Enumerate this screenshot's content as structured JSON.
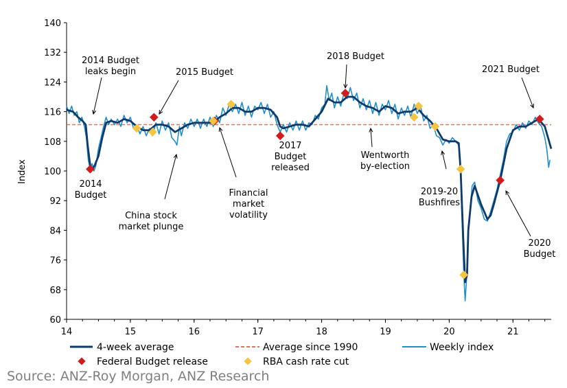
{
  "chart_data": {
    "type": "line",
    "ylabel": "Index",
    "ylim": [
      60,
      140
    ],
    "yticks": [
      "60",
      "68",
      "76",
      "84",
      "92",
      "100",
      "108",
      "116",
      "124",
      "132",
      "140"
    ],
    "xlim": [
      14,
      21.6
    ],
    "xticks": [
      "14",
      "15",
      "16",
      "17",
      "18",
      "19",
      "20",
      "21"
    ],
    "grid": false,
    "legend_position": "bottom",
    "series": [
      {
        "name": "4-week average",
        "color": "#0d3a6b",
        "points": [
          [
            14.0,
            116.5
          ],
          [
            14.1,
            116.0
          ],
          [
            14.18,
            114.5
          ],
          [
            14.25,
            113.5
          ],
          [
            14.3,
            112.5
          ],
          [
            14.33,
            107
          ],
          [
            14.37,
            101.5
          ],
          [
            14.4,
            100.5
          ],
          [
            14.44,
            101.5
          ],
          [
            14.5,
            104
          ],
          [
            14.56,
            109
          ],
          [
            14.62,
            113
          ],
          [
            14.7,
            113.5
          ],
          [
            14.8,
            113
          ],
          [
            14.9,
            114
          ],
          [
            15.0,
            113.5
          ],
          [
            15.1,
            112
          ],
          [
            15.2,
            111
          ],
          [
            15.3,
            111
          ],
          [
            15.4,
            112.5
          ],
          [
            15.5,
            112.5
          ],
          [
            15.6,
            112
          ],
          [
            15.7,
            110.5
          ],
          [
            15.8,
            111.5
          ],
          [
            15.9,
            112.5
          ],
          [
            16.0,
            113
          ],
          [
            16.1,
            113
          ],
          [
            16.2,
            113
          ],
          [
            16.3,
            113
          ],
          [
            16.4,
            114.5
          ],
          [
            16.5,
            115.5
          ],
          [
            16.6,
            117
          ],
          [
            16.7,
            117
          ],
          [
            16.8,
            116
          ],
          [
            16.9,
            116
          ],
          [
            17.0,
            117
          ],
          [
            17.1,
            117
          ],
          [
            17.2,
            116.5
          ],
          [
            17.3,
            114.5
          ],
          [
            17.35,
            112
          ],
          [
            17.4,
            111.5
          ],
          [
            17.5,
            112
          ],
          [
            17.6,
            112.5
          ],
          [
            17.7,
            112.5
          ],
          [
            17.8,
            112
          ],
          [
            17.9,
            114
          ],
          [
            18.0,
            116
          ],
          [
            18.1,
            119.5
          ],
          [
            18.2,
            118.5
          ],
          [
            18.3,
            118.5
          ],
          [
            18.4,
            120
          ],
          [
            18.5,
            120
          ],
          [
            18.6,
            118.5
          ],
          [
            18.7,
            117.5
          ],
          [
            18.8,
            117
          ],
          [
            18.9,
            116
          ],
          [
            19.0,
            117.5
          ],
          [
            19.1,
            117
          ],
          [
            19.2,
            115.5
          ],
          [
            19.3,
            116
          ],
          [
            19.4,
            116
          ],
          [
            19.5,
            117
          ],
          [
            19.6,
            115
          ],
          [
            19.7,
            113.5
          ],
          [
            19.8,
            111.5
          ],
          [
            19.9,
            108.5
          ],
          [
            20.0,
            108
          ],
          [
            20.1,
            108
          ],
          [
            20.15,
            107.5
          ],
          [
            20.18,
            100
          ],
          [
            20.22,
            82
          ],
          [
            20.25,
            70
          ],
          [
            20.28,
            72
          ],
          [
            20.3,
            84
          ],
          [
            20.35,
            93
          ],
          [
            20.4,
            96
          ],
          [
            20.5,
            91
          ],
          [
            20.6,
            87
          ],
          [
            20.65,
            88
          ],
          [
            20.7,
            91
          ],
          [
            20.8,
            97.5
          ],
          [
            20.9,
            106
          ],
          [
            21.0,
            111
          ],
          [
            21.1,
            112
          ],
          [
            21.2,
            112
          ],
          [
            21.3,
            113
          ],
          [
            21.4,
            114
          ],
          [
            21.5,
            112
          ],
          [
            21.6,
            106
          ]
        ]
      },
      {
        "name": "Weekly index",
        "color": "#1f8fc9",
        "points": [
          [
            14.0,
            117.5
          ],
          [
            14.04,
            115.5
          ],
          [
            14.08,
            117.5
          ],
          [
            14.12,
            115
          ],
          [
            14.16,
            116
          ],
          [
            14.2,
            113
          ],
          [
            14.24,
            114.5
          ],
          [
            14.28,
            112
          ],
          [
            14.31,
            109
          ],
          [
            14.34,
            103
          ],
          [
            14.37,
            100.5
          ],
          [
            14.4,
            102
          ],
          [
            14.43,
            100
          ],
          [
            14.46,
            101.5
          ],
          [
            14.5,
            106
          ],
          [
            14.54,
            109
          ],
          [
            14.58,
            112
          ],
          [
            14.62,
            114.5
          ],
          [
            14.66,
            112.5
          ],
          [
            14.7,
            114
          ],
          [
            14.75,
            112.5
          ],
          [
            14.8,
            114
          ],
          [
            14.85,
            112
          ],
          [
            14.9,
            115
          ],
          [
            14.95,
            113
          ],
          [
            15.0,
            114.5
          ],
          [
            15.05,
            111.5
          ],
          [
            15.1,
            112.5
          ],
          [
            15.15,
            110
          ],
          [
            15.2,
            112
          ],
          [
            15.25,
            109.5
          ],
          [
            15.3,
            111.5
          ],
          [
            15.35,
            109.5
          ],
          [
            15.4,
            113
          ],
          [
            15.45,
            110
          ],
          [
            15.5,
            113.5
          ],
          [
            15.55,
            111
          ],
          [
            15.6,
            113
          ],
          [
            15.65,
            109
          ],
          [
            15.7,
            108
          ],
          [
            15.73,
            107
          ],
          [
            15.77,
            112
          ],
          [
            15.8,
            109.5
          ],
          [
            15.85,
            113
          ],
          [
            15.9,
            111.5
          ],
          [
            15.95,
            114
          ],
          [
            16.0,
            112
          ],
          [
            16.05,
            114
          ],
          [
            16.1,
            111.5
          ],
          [
            16.15,
            114
          ],
          [
            16.2,
            112
          ],
          [
            16.25,
            114.5
          ],
          [
            16.3,
            112
          ],
          [
            16.35,
            115
          ],
          [
            16.4,
            113
          ],
          [
            16.45,
            117
          ],
          [
            16.5,
            115
          ],
          [
            16.55,
            118
          ],
          [
            16.6,
            116
          ],
          [
            16.65,
            118
          ],
          [
            16.7,
            115.5
          ],
          [
            16.75,
            118.5
          ],
          [
            16.8,
            115
          ],
          [
            16.85,
            117.5
          ],
          [
            16.9,
            114.5
          ],
          [
            16.95,
            117.5
          ],
          [
            17.0,
            116.5
          ],
          [
            17.05,
            118.5
          ],
          [
            17.1,
            115.5
          ],
          [
            17.15,
            118
          ],
          [
            17.2,
            114.5
          ],
          [
            17.25,
            116
          ],
          [
            17.3,
            112.5
          ],
          [
            17.35,
            110.5
          ],
          [
            17.4,
            112.5
          ],
          [
            17.45,
            110.5
          ],
          [
            17.5,
            113
          ],
          [
            17.55,
            111
          ],
          [
            17.6,
            113.5
          ],
          [
            17.65,
            111
          ],
          [
            17.7,
            113.5
          ],
          [
            17.75,
            111
          ],
          [
            17.8,
            113
          ],
          [
            17.85,
            112.5
          ],
          [
            17.9,
            115
          ],
          [
            17.95,
            114
          ],
          [
            18.0,
            117
          ],
          [
            18.05,
            118
          ],
          [
            18.08,
            123
          ],
          [
            18.12,
            119
          ],
          [
            18.16,
            121
          ],
          [
            18.2,
            117
          ],
          [
            18.25,
            120
          ],
          [
            18.3,
            117.5
          ],
          [
            18.35,
            121
          ],
          [
            18.4,
            119.5
          ],
          [
            18.45,
            122.5
          ],
          [
            18.5,
            119
          ],
          [
            18.55,
            121
          ],
          [
            18.6,
            117
          ],
          [
            18.65,
            119.5
          ],
          [
            18.7,
            116.5
          ],
          [
            18.75,
            119
          ],
          [
            18.8,
            115.5
          ],
          [
            18.85,
            118.5
          ],
          [
            18.9,
            115
          ],
          [
            18.95,
            118
          ],
          [
            19.0,
            116.5
          ],
          [
            19.05,
            119
          ],
          [
            19.1,
            115.5
          ],
          [
            19.15,
            118
          ],
          [
            19.2,
            114
          ],
          [
            19.25,
            117
          ],
          [
            19.3,
            115
          ],
          [
            19.35,
            117.5
          ],
          [
            19.4,
            114.5
          ],
          [
            19.45,
            118
          ],
          [
            19.5,
            115.5
          ],
          [
            19.55,
            117.5
          ],
          [
            19.6,
            113.5
          ],
          [
            19.65,
            115
          ],
          [
            19.7,
            111.5
          ],
          [
            19.75,
            112.5
          ],
          [
            19.8,
            109.5
          ],
          [
            19.85,
            109
          ],
          [
            19.9,
            107
          ],
          [
            19.95,
            108.5
          ],
          [
            20.0,
            107.5
          ],
          [
            20.05,
            109
          ],
          [
            20.1,
            108
          ],
          [
            20.15,
            107
          ],
          [
            20.17,
            103
          ],
          [
            20.2,
            88
          ],
          [
            20.23,
            72
          ],
          [
            20.25,
            65
          ],
          [
            20.27,
            70
          ],
          [
            20.3,
            83
          ],
          [
            20.33,
            90
          ],
          [
            20.36,
            96
          ],
          [
            20.4,
            97
          ],
          [
            20.45,
            92
          ],
          [
            20.5,
            90
          ],
          [
            20.55,
            87
          ],
          [
            20.6,
            86.5
          ],
          [
            20.65,
            89
          ],
          [
            20.7,
            92
          ],
          [
            20.75,
            95
          ],
          [
            20.8,
            99
          ],
          [
            20.85,
            103
          ],
          [
            20.9,
            108
          ],
          [
            20.95,
            110
          ],
          [
            21.0,
            110.5
          ],
          [
            21.05,
            112.5
          ],
          [
            21.1,
            111
          ],
          [
            21.15,
            113
          ],
          [
            21.2,
            111.5
          ],
          [
            21.25,
            113.5
          ],
          [
            21.3,
            112.5
          ],
          [
            21.35,
            114.5
          ],
          [
            21.4,
            113
          ],
          [
            21.45,
            112
          ],
          [
            21.5,
            109
          ],
          [
            21.53,
            106
          ],
          [
            21.56,
            101
          ],
          [
            21.58,
            103
          ]
        ]
      },
      {
        "name": "Average since 1990",
        "color": "#e8735a",
        "value": 112.5
      }
    ],
    "markers": [
      {
        "name": "Federal Budget release",
        "color": "#d01c1c",
        "points": [
          [
            14.37,
            100.5
          ],
          [
            15.37,
            114.5
          ],
          [
            16.32,
            113.5
          ],
          [
            17.35,
            109.5
          ],
          [
            18.37,
            121
          ],
          [
            20.8,
            97.5
          ],
          [
            21.42,
            114
          ]
        ]
      },
      {
        "name": "RBA cash rate cut",
        "color": "#f5c542",
        "points": [
          [
            15.1,
            111.5
          ],
          [
            15.35,
            110.5
          ],
          [
            16.3,
            113.5
          ],
          [
            16.58,
            118
          ],
          [
            19.45,
            114.5
          ],
          [
            19.52,
            117.5
          ],
          [
            19.78,
            112
          ],
          [
            20.18,
            100.5
          ],
          [
            20.23,
            72
          ]
        ]
      }
    ],
    "annotations": [
      {
        "lines": [
          "2014 Budget",
          "leaks begin"
        ]
      },
      {
        "lines": [
          "2015 Budget"
        ]
      },
      {
        "lines": [
          "2014",
          "Budget"
        ]
      },
      {
        "lines": [
          "China stock",
          "market plunge"
        ]
      },
      {
        "lines": [
          "Financial",
          "market",
          "volatility"
        ]
      },
      {
        "lines": [
          "2017",
          "Budget",
          "released"
        ]
      },
      {
        "lines": [
          "2018 Budget"
        ]
      },
      {
        "lines": [
          "Wentworth",
          "by-election"
        ]
      },
      {
        "lines": [
          "2019-20",
          "Bushfires"
        ]
      },
      {
        "lines": [
          "2021 Budget"
        ]
      },
      {
        "lines": [
          "2020",
          "Budget"
        ]
      }
    ]
  },
  "legend": {
    "row1": [
      "4-week average",
      "Average since 1990",
      "Weekly index"
    ],
    "row2": [
      "Federal Budget release",
      "RBA cash rate cut"
    ]
  },
  "source": "Source: ANZ-Roy Morgan, ANZ Research"
}
